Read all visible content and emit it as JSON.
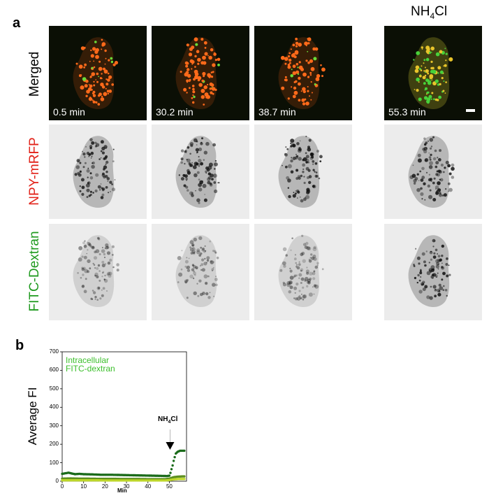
{
  "panel_a": {
    "letter": "a",
    "rows": [
      {
        "label": "Merged",
        "color": "#000000"
      },
      {
        "label": "NPY-mRFP",
        "color": "#e2231a"
      },
      {
        "label": "FITC-Dextran",
        "color": "#1f9a1f"
      }
    ],
    "timepoints": [
      "0.5 min",
      "30.2 min",
      "38.7 min",
      "55.3 min"
    ],
    "treatment_header": {
      "main": "NH",
      "sub": "4",
      "tail": "Cl"
    }
  },
  "panel_b": {
    "letter": "b",
    "chart_data": {
      "type": "scatter",
      "ylabel": "Average FI",
      "xlabel": "Min",
      "ylim": [
        0,
        700
      ],
      "xlim": [
        0,
        58
      ],
      "yticks": [
        0,
        100,
        200,
        300,
        400,
        500,
        600,
        700
      ],
      "xticks": [
        0,
        10,
        20,
        30,
        40,
        50
      ],
      "legend": [
        "Intracellular",
        "FITC-dextran"
      ],
      "legend_color": "#3bbf2b",
      "annotation": {
        "main": "NH",
        "sub": "4",
        "tail": "Cl",
        "x": 50
      },
      "series": [
        {
          "color": "#1a6b1a",
          "x": [
            0,
            2,
            3,
            4,
            6,
            8,
            10,
            14,
            18,
            22,
            26,
            30,
            34,
            38,
            42,
            46,
            49,
            50,
            50.5,
            51,
            51.5,
            52,
            52.5,
            53,
            54,
            55,
            56,
            57
          ],
          "y": [
            40,
            44,
            46,
            43,
            38,
            40,
            38,
            37,
            35,
            35,
            34,
            33,
            32,
            31,
            30,
            29,
            28,
            30,
            45,
            65,
            85,
            110,
            130,
            150,
            160,
            165,
            165,
            165
          ]
        },
        {
          "color": "#5d8f1e",
          "x": [
            0,
            4,
            8,
            12,
            16,
            20,
            24,
            28,
            32,
            36,
            40,
            44,
            48,
            50,
            52,
            54,
            56,
            57
          ],
          "y": [
            14,
            15,
            14,
            14,
            13,
            13,
            13,
            12,
            12,
            12,
            11,
            11,
            11,
            14,
            22,
            25,
            26,
            26
          ]
        },
        {
          "color": "#bdd62a",
          "x": [
            0,
            4,
            8,
            12,
            16,
            20,
            24,
            28,
            32,
            36,
            40,
            44,
            48,
            50,
            52,
            54,
            56,
            57
          ],
          "y": [
            5,
            5,
            5,
            5,
            5,
            4,
            4,
            4,
            4,
            4,
            4,
            4,
            4,
            6,
            10,
            12,
            12,
            12
          ]
        }
      ]
    }
  }
}
